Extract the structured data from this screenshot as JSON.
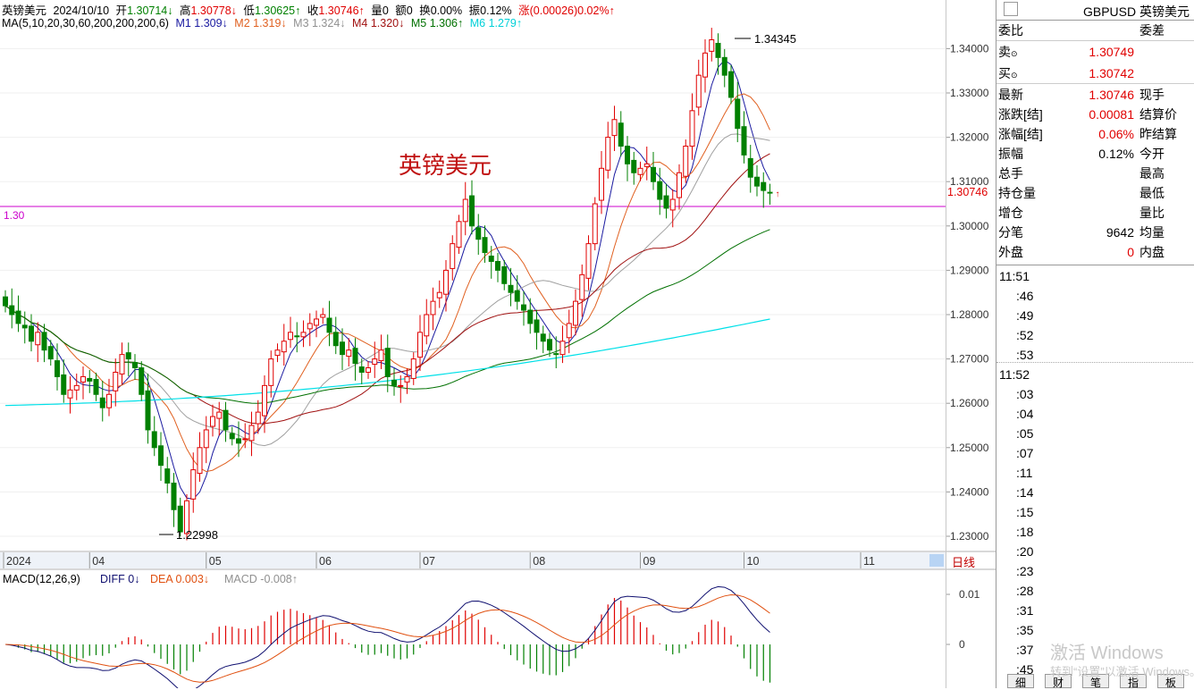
{
  "header": {
    "name": "英镑美元",
    "date": "2024/10/10",
    "open_label": "开",
    "open": "1.30714↓",
    "high_label": "高",
    "high": "1.30778↓",
    "low_label": "低",
    "low": "1.30625↑",
    "close_label": "收",
    "close": "1.30746↑",
    "vol_label": "量",
    "vol": "0",
    "amount_label": "额",
    "amount": "0",
    "turnover_label": "换",
    "turnover": "0.00%",
    "amp_label": "振",
    "amp": "0.12%",
    "change_label": "涨",
    "change": "(0.00026)0.02%↑"
  },
  "ma_legend": {
    "params": "MA(5,10,20,30,60,200,200,200,6)",
    "m1": "M1 1.309↓",
    "m2": "M2 1.319↓",
    "m3": "M3 1.324↓",
    "m4": "M4 1.320↓",
    "m5": "M5 1.306↑",
    "m6": "M6 1.279↑"
  },
  "colors": {
    "up": "#e00000",
    "down": "#008000",
    "m1": "#1a1aa0",
    "m2": "#e06020",
    "m3": "#a0a0a0",
    "m4": "#a01010",
    "m5": "#007000",
    "m6": "#00e0e8",
    "hline": "#cc00cc",
    "diff": "#101070",
    "dea": "#e05010"
  },
  "watermark_title": "英镑美元",
  "hline_label": "1.30",
  "high_annotation": "1.34345",
  "low_annotation": "1.22998",
  "price_tag": "1.30746",
  "period_tab": "日线",
  "macd_legend": {
    "params": "MACD(12,26,9)",
    "diff": "DIFF 0↓",
    "dea": "DEA 0.003↓",
    "macd": "MACD -0.008↑"
  },
  "chart_data": {
    "type": "candlestick",
    "title": "英镑美元 GBPUSD",
    "x_ticks": [
      "2024",
      "04",
      "05",
      "06",
      "07",
      "08",
      "09",
      "10",
      "11"
    ],
    "y_ticks": [
      1.23,
      1.24,
      1.25,
      1.26,
      1.27,
      1.28,
      1.29,
      1.3,
      1.31,
      1.32,
      1.33,
      1.34
    ],
    "y_tick_labels": [
      "1.23000",
      "1.24000",
      "1.25000",
      "1.26000",
      "1.27000",
      "1.28000",
      "1.29000",
      "1.30000",
      "1.31000",
      "1.32000",
      "1.33000",
      "1.34000"
    ],
    "ylim": [
      1.2275,
      1.3465
    ],
    "period_high": 1.34345,
    "period_low": 1.22998,
    "last_close": 1.30746,
    "horizontal_line": 1.3,
    "close_series": [
      1.282,
      1.28,
      1.278,
      1.277,
      1.274,
      1.276,
      1.272,
      1.27,
      1.266,
      1.262,
      1.263,
      1.264,
      1.266,
      1.265,
      1.262,
      1.259,
      1.262,
      1.267,
      1.271,
      1.27,
      1.268,
      1.262,
      1.254,
      1.25,
      1.246,
      1.242,
      1.236,
      1.231,
      1.238,
      1.245,
      1.25,
      1.254,
      1.257,
      1.258,
      1.254,
      1.252,
      1.251,
      1.252,
      1.255,
      1.258,
      1.264,
      1.27,
      1.272,
      1.274,
      1.276,
      1.275,
      1.276,
      1.278,
      1.279,
      1.28,
      1.276,
      1.273,
      1.271,
      1.272,
      1.269,
      1.267,
      1.268,
      1.27,
      1.272,
      1.266,
      1.264,
      1.264,
      1.266,
      1.27,
      1.276,
      1.28,
      1.283,
      1.285,
      1.29,
      1.296,
      1.301,
      1.306,
      1.3,
      1.297,
      1.294,
      1.292,
      1.29,
      1.287,
      1.285,
      1.283,
      1.281,
      1.278,
      1.276,
      1.274,
      1.272,
      1.271,
      1.274,
      1.278,
      1.283,
      1.289,
      1.296,
      1.305,
      1.313,
      1.32,
      1.324,
      1.318,
      1.314,
      1.312,
      1.313,
      1.314,
      1.31,
      1.306,
      1.304,
      1.306,
      1.312,
      1.318,
      1.326,
      1.334,
      1.339,
      1.342,
      1.338,
      1.334,
      1.329,
      1.322,
      1.316,
      1.311,
      1.309,
      1.308,
      1.3075
    ],
    "ma_legend_values": {
      "M1": 1.309,
      "M2": 1.319,
      "M3": 1.324,
      "M4": 1.32,
      "M5": 1.306,
      "M6": 1.279
    },
    "macd": {
      "ylim": [
        -0.01,
        0.012
      ],
      "y_ticks": [
        0.01,
        0,
        -0.01
      ],
      "y_tick_labels": [
        "0.01",
        "0",
        "-0.01"
      ],
      "diff": 0,
      "dea": 0.003,
      "macd": -0.008
    }
  },
  "quote": {
    "symbol_title": "GBPUSD 英镑美元",
    "weibi_label": "委比",
    "weicha_label": "委差",
    "sell_label": "卖",
    "sell": "1.30749",
    "buy_label": "买",
    "buy": "1.30742",
    "rows": [
      {
        "l": "最新",
        "v": "1.30746",
        "r": "现手",
        "vc": "red"
      },
      {
        "l": "涨跌[结]",
        "v": "0.00081",
        "r": "结算价",
        "vc": "red"
      },
      {
        "l": "涨幅[结]",
        "v": "0.06%",
        "r": "昨结算",
        "vc": "red"
      },
      {
        "l": "振幅",
        "v": "0.12%",
        "r": "今开",
        "vc": "black"
      },
      {
        "l": "总手",
        "v": "",
        "r": "最高",
        "vc": "black"
      },
      {
        "l": "持仓量",
        "v": "",
        "r": "最低",
        "vc": "black"
      },
      {
        "l": "增仓",
        "v": "",
        "r": "量比",
        "vc": "black"
      },
      {
        "l": "分笔",
        "v": "9642",
        "r": "均量",
        "vc": "black"
      },
      {
        "l": "外盘",
        "v": "0",
        "r": "内盘",
        "vc": "red"
      }
    ],
    "times": [
      "11:51",
      ":46",
      ":49",
      ":52",
      ":53",
      "11:52",
      ":03",
      ":04",
      ":05",
      ":07",
      ":11",
      ":14",
      ":15",
      ":18",
      ":20",
      ":23",
      ":28",
      ":31",
      ":35",
      ":37",
      ":45"
    ],
    "tabs": [
      "细",
      "财",
      "笔",
      "指",
      "板"
    ]
  },
  "watermark": {
    "line1": "激活 Windows",
    "line2": "转到“设置”以激活 Windows。"
  }
}
